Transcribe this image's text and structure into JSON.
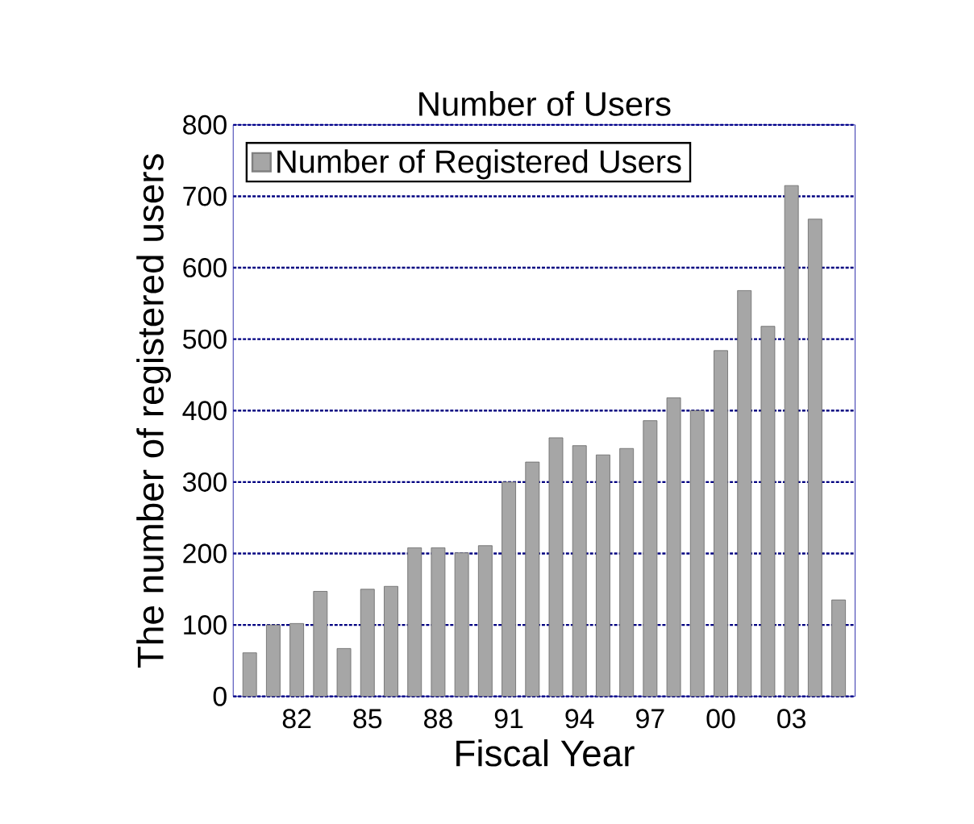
{
  "chart_data": {
    "type": "bar",
    "title": "Number of Users",
    "xlabel": "Fiscal Year",
    "ylabel": "The number of registered users",
    "categories": [
      null,
      null,
      "82",
      null,
      null,
      "85",
      null,
      null,
      "88",
      null,
      null,
      "91",
      null,
      null,
      "94",
      null,
      null,
      "97",
      null,
      null,
      "00",
      null,
      null,
      "03",
      null,
      null
    ],
    "series": [
      {
        "name": "Number of Registered Users",
        "color": "#a6a6a6",
        "values": [
          61,
          100,
          102,
          147,
          67,
          150,
          154,
          208,
          208,
          201,
          211,
          300,
          328,
          362,
          351,
          338,
          347,
          386,
          418,
          400,
          484,
          568,
          518,
          715,
          668,
          135
        ]
      }
    ],
    "ylim": [
      0,
      800
    ],
    "yticks": [
      0,
      100,
      200,
      300,
      400,
      500,
      600,
      700,
      800
    ],
    "grid": "y",
    "legend": "top left"
  }
}
